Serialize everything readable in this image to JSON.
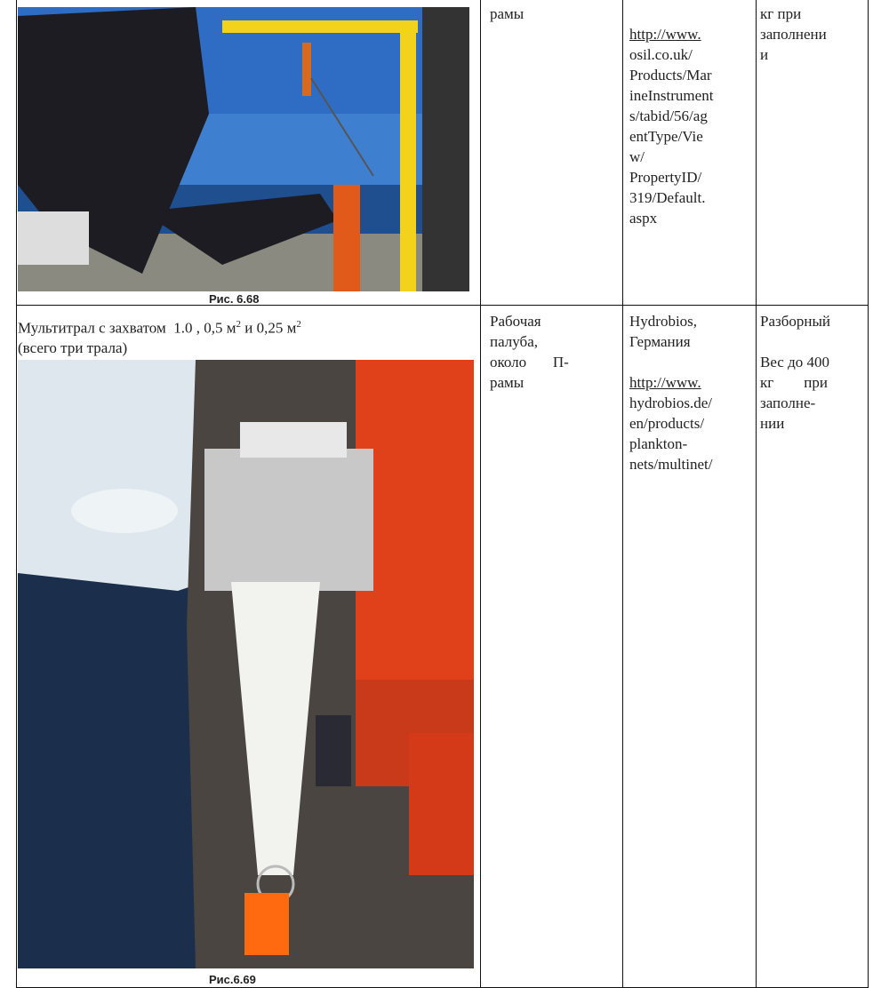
{
  "table": {
    "rows": [
      {
        "figure_caption": "Рис. 6.68",
        "location": [
          "рамы"
        ],
        "url": [
          "http://www.",
          "osil.co.uk/",
          "Products/Mar",
          "ineInstrument",
          "s/tabid/56/ag",
          "entType/Vie",
          "w/",
          "PropertyID/",
          "319/Default.",
          "aspx"
        ],
        "notes": [
          "кг при",
          "заполнени",
          "и"
        ]
      },
      {
        "title": [
          "Мультитрал с захватом  1.0 , 0,5 м",
          "2",
          " и 0,25 м",
          "2"
        ],
        "subtitle": "(всего три трала)",
        "figure_caption": "Рис.6.69",
        "location": [
          "Рабочая",
          "палуба,",
          "около       П-",
          "рамы"
        ],
        "supplier": [
          "Hydrobios,",
          "Германия"
        ],
        "url": [
          "http://www.",
          "hydrobios.de/",
          "en/products/",
          "plankton-",
          "nets/multinet/"
        ],
        "notes": [
          "Разборный",
          "Вес до 400",
          "кг        при",
          "заполне-",
          "нии"
        ]
      }
    ]
  }
}
